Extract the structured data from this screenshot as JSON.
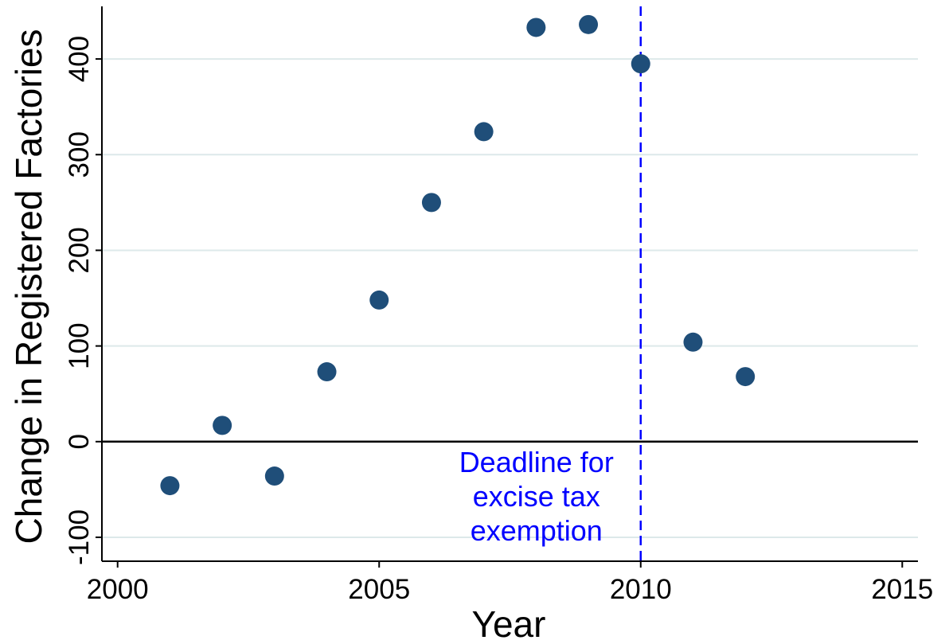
{
  "chart_data": {
    "type": "scatter",
    "xlabel": "Year",
    "ylabel": "Change in Registered Factories",
    "xlim": [
      1999.7,
      2015.3
    ],
    "ylim": [
      -125,
      455
    ],
    "x_ticks": [
      2000,
      2005,
      2010,
      2015
    ],
    "y_ticks": [
      -100,
      0,
      100,
      200,
      300,
      400
    ],
    "grid": "horizontal",
    "colors": {
      "marker": "#1f4e79",
      "reference_line": "#0000ff",
      "grid": "#dde9ea"
    },
    "series": [
      {
        "x": [
          2001,
          2002,
          2003,
          2004,
          2005,
          2006,
          2007,
          2008,
          2009,
          2010,
          2011,
          2012
        ],
        "y": [
          -46,
          17,
          -36,
          73,
          148,
          250,
          324,
          433,
          436,
          395,
          104,
          68
        ]
      }
    ],
    "reference_lines": [
      {
        "axis": "x",
        "value": 2010,
        "style": "dashed",
        "label": [
          "Deadline for",
          "excise tax",
          "exemption"
        ]
      },
      {
        "axis": "y",
        "value": 0,
        "style": "solid"
      }
    ]
  }
}
